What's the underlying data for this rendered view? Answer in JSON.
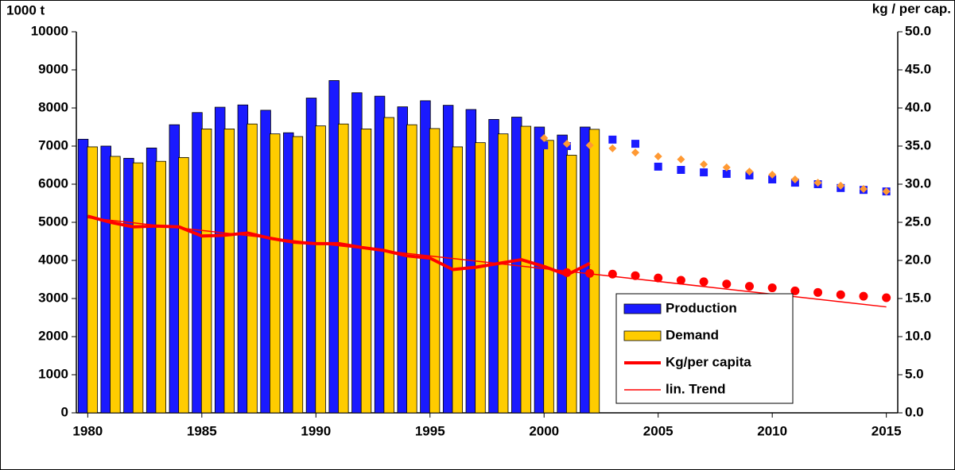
{
  "chart_data": {
    "type": "combo",
    "y_label": "1000 t",
    "y2_label": "kg / per cap.",
    "xlim": [
      1979.5,
      2015.5
    ],
    "xticks": [
      1980,
      1985,
      1990,
      1995,
      2000,
      2005,
      2010,
      2015
    ],
    "ylim": [
      0,
      10000
    ],
    "yticks": [
      0,
      1000,
      2000,
      3000,
      4000,
      5000,
      6000,
      7000,
      8000,
      9000,
      10000
    ],
    "y2lim": [
      0,
      50
    ],
    "y2ticks": [
      {
        "value": 0,
        "label": "0.0"
      },
      {
        "value": 5,
        "label": "5.0"
      },
      {
        "value": 10,
        "label": "10.0"
      },
      {
        "value": 15,
        "label": "15.0"
      },
      {
        "value": 20,
        "label": "20.0"
      },
      {
        "value": 25,
        "label": "25.0"
      },
      {
        "value": 30,
        "label": "30.0"
      },
      {
        "value": 35,
        "label": "35.0"
      },
      {
        "value": 40,
        "label": "40.0"
      },
      {
        "value": 45,
        "label": "45.0"
      },
      {
        "value": 50,
        "label": "50.0"
      }
    ],
    "grid": false,
    "legend": "bottom-right",
    "series": [
      {
        "name": "Production",
        "kind": "bar",
        "slot": "left",
        "color": "#1a1aff",
        "x": [
          1980,
          1981,
          1982,
          1983,
          1984,
          1985,
          1986,
          1987,
          1988,
          1989,
          1990,
          1991,
          1992,
          1993,
          1994,
          1995,
          1996,
          1997,
          1998,
          1999,
          2000,
          2001,
          2002
        ],
        "values": [
          7180,
          7000,
          6680,
          6950,
          7560,
          7880,
          8020,
          8080,
          7940,
          7350,
          8260,
          8720,
          8400,
          8310,
          8030,
          8190,
          8070,
          7960,
          7700,
          7760,
          7500,
          7290,
          7500
        ]
      },
      {
        "name": "Demand",
        "kind": "bar",
        "slot": "right",
        "color": "#ffcc00",
        "x": [
          1980,
          1981,
          1982,
          1983,
          1984,
          1985,
          1986,
          1987,
          1988,
          1989,
          1990,
          1991,
          1992,
          1993,
          1994,
          1995,
          1996,
          1997,
          1998,
          1999,
          2000,
          2001,
          2002
        ],
        "values": [
          6980,
          6730,
          6560,
          6600,
          6700,
          7450,
          7450,
          7580,
          7320,
          7250,
          7530,
          7580,
          7450,
          7750,
          7560,
          7460,
          6980,
          7090,
          7320,
          7520,
          7150,
          6760,
          7440
        ]
      },
      {
        "name": "Kg/per capita",
        "kind": "line",
        "width": 4,
        "axis": "y2",
        "color": "#ff0000",
        "x": [
          1980,
          1981,
          1982,
          1983,
          1984,
          1985,
          1986,
          1987,
          1988,
          1989,
          1990,
          1991,
          1992,
          1993,
          1994,
          1995,
          1996,
          1997,
          1998,
          1999,
          2000,
          2001,
          2002
        ],
        "values": [
          25.8,
          25.0,
          24.4,
          24.5,
          24.4,
          23.2,
          23.3,
          23.6,
          22.9,
          22.4,
          22.2,
          22.2,
          21.7,
          21.3,
          20.6,
          20.3,
          18.8,
          19.1,
          19.6,
          20.1,
          19.2,
          18.1,
          19.6
        ]
      },
      {
        "name": "lin. Trend",
        "kind": "line",
        "width": 1.5,
        "axis": "y2",
        "color": "#ff0000",
        "x": [
          1980,
          2015
        ],
        "values": [
          25.6,
          13.9
        ]
      },
      {
        "kind": "scatter",
        "marker": "square",
        "color": "#1a1aff",
        "x": [
          2000,
          2001,
          2003,
          2004,
          2005,
          2006,
          2007,
          2008,
          2009,
          2010,
          2011,
          2012,
          2013,
          2014,
          2015
        ],
        "values": [
          7020,
          7000,
          7170,
          7060,
          6460,
          6375,
          6310,
          6270,
          6230,
          6125,
          6040,
          6000,
          5900,
          5850,
          5810
        ]
      },
      {
        "kind": "scatter",
        "marker": "diamond",
        "color": "#ff9933",
        "x": [
          2000,
          2001,
          2002,
          2003,
          2004,
          2005,
          2006,
          2007,
          2008,
          2009,
          2010,
          2011,
          2012,
          2013,
          2014,
          2015
        ],
        "values": [
          7210,
          7060,
          7020,
          6940,
          6830,
          6730,
          6650,
          6520,
          6440,
          6330,
          6250,
          6125,
          6040,
          5960,
          5875,
          5810
        ]
      },
      {
        "kind": "scatter",
        "marker": "circle",
        "axis": "y2",
        "color": "#ff0000",
        "x": [
          2001,
          2002,
          2003,
          2004,
          2005,
          2006,
          2007,
          2008,
          2009,
          2010,
          2011,
          2012,
          2013,
          2014,
          2015
        ],
        "values": [
          18.4,
          18.3,
          18.2,
          18.0,
          17.7,
          17.4,
          17.2,
          16.9,
          16.6,
          16.4,
          16.0,
          15.8,
          15.5,
          15.3,
          15.1
        ]
      }
    ]
  }
}
